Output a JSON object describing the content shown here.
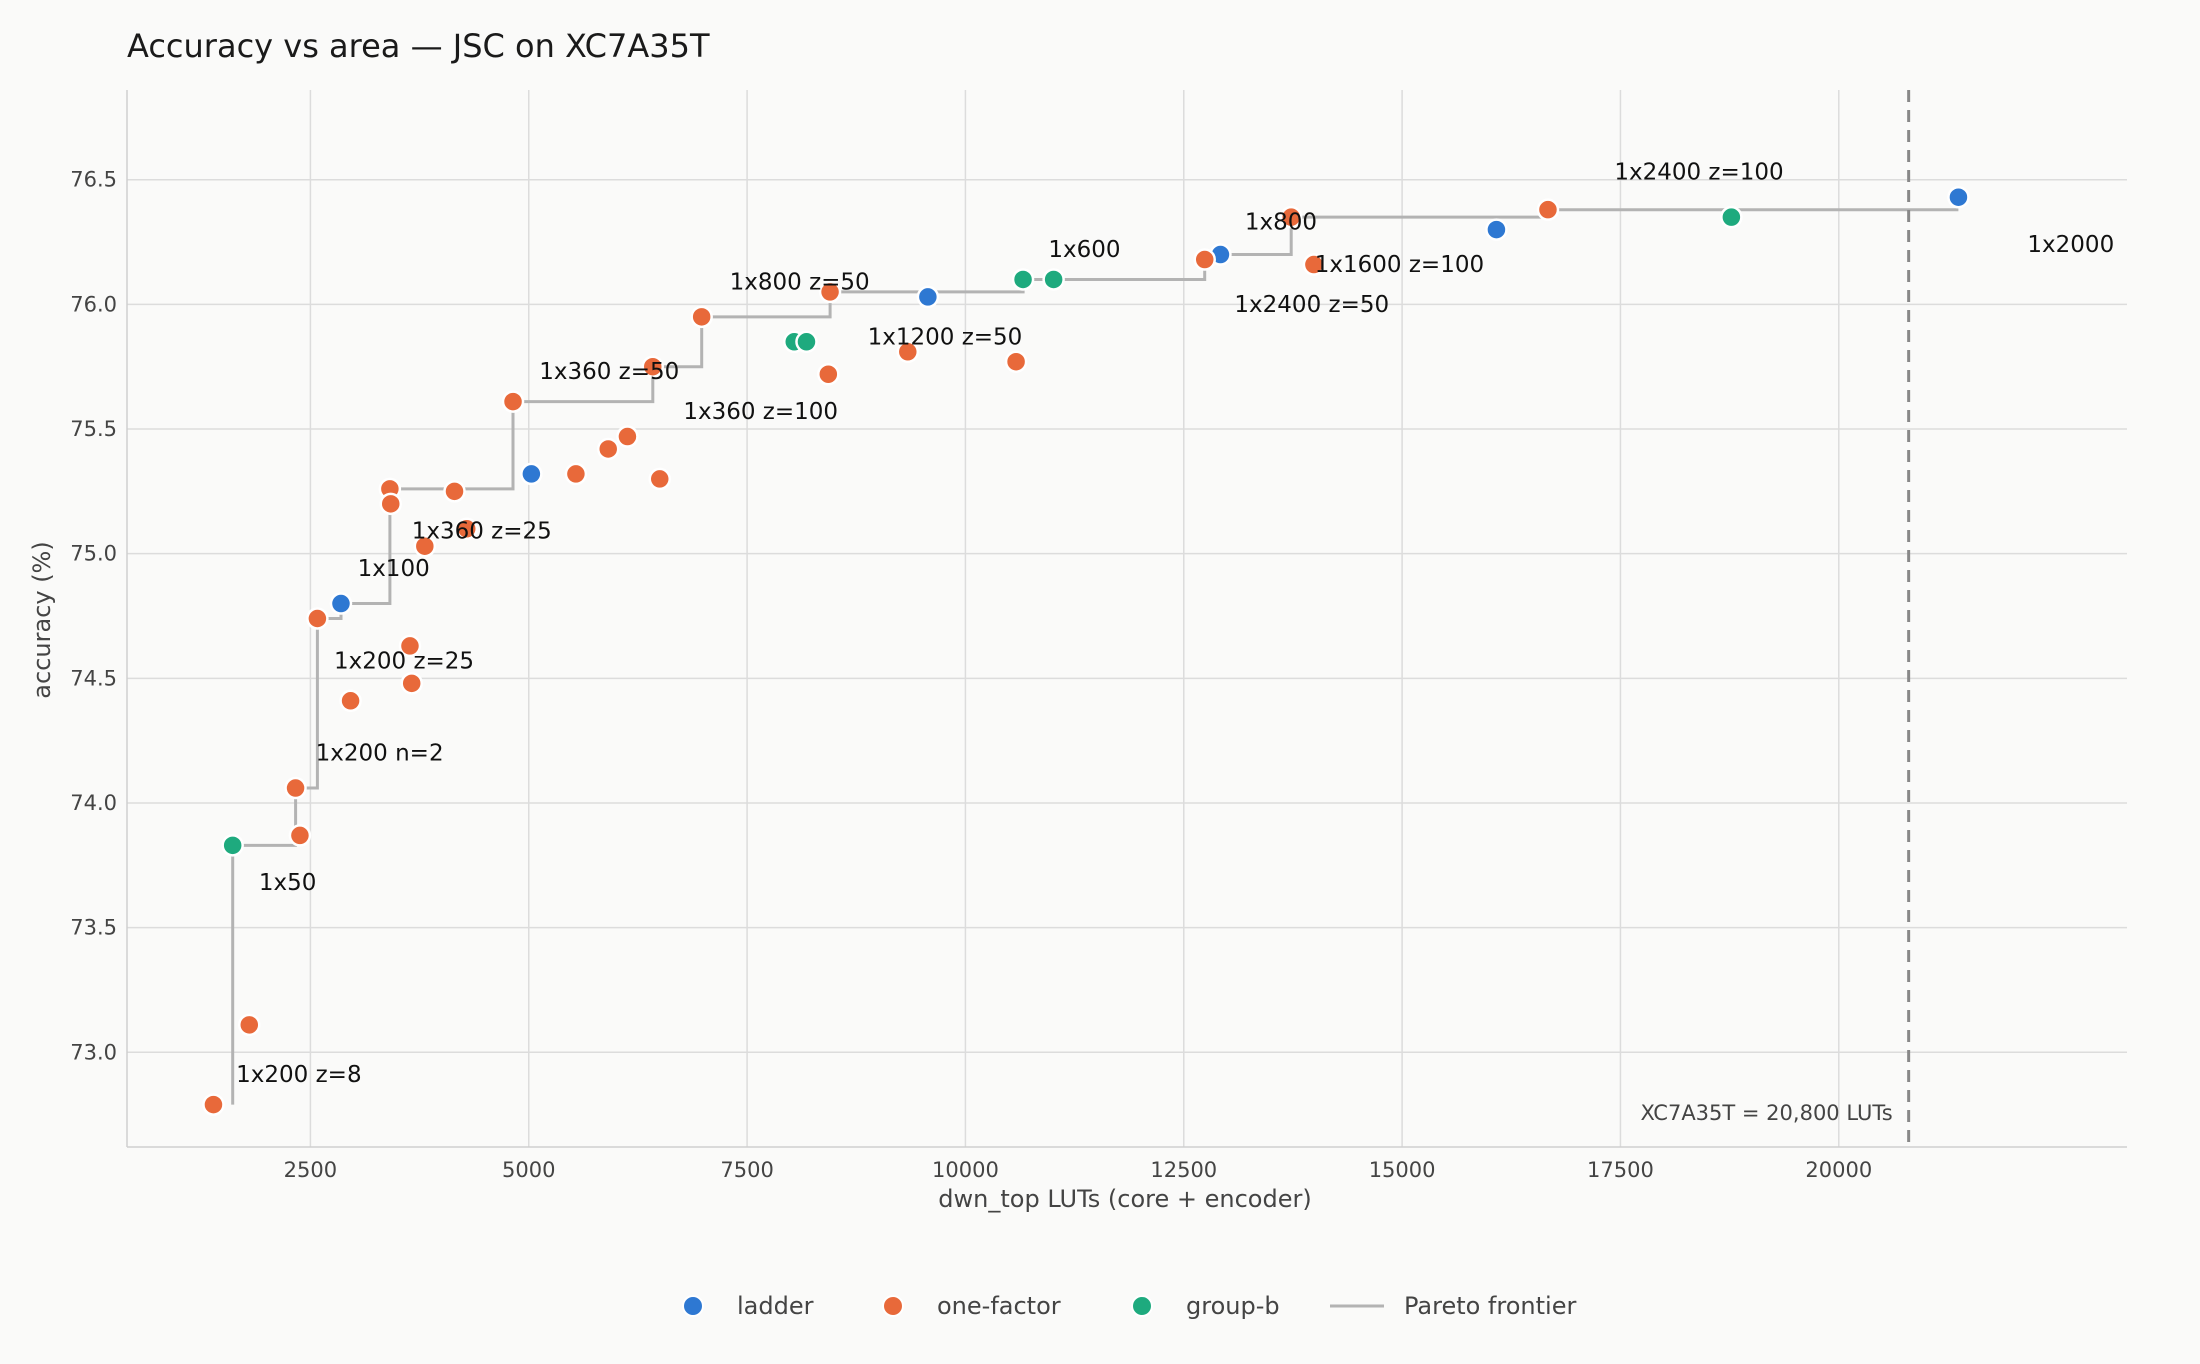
{
  "chart_data": {
    "type": "scatter",
    "title": "Accuracy vs area — JSC on XC7A35T",
    "xlabel": "dwn_top LUTs (core + encoder)",
    "ylabel": "accuracy (%)",
    "xlim": [
      400,
      23300
    ],
    "ylim": [
      72.62,
      76.86
    ],
    "xticks": [
      2500,
      5000,
      7500,
      10000,
      12500,
      15000,
      17500,
      20000
    ],
    "yticks": [
      73.0,
      73.5,
      74.0,
      74.5,
      75.0,
      75.5,
      76.0,
      76.5
    ],
    "grid": true,
    "legend_position": "bottom-center",
    "colors": {
      "ladder": "#2e78d2",
      "one-factor": "#e8693a",
      "group-b": "#1eaa7e",
      "frontier": "#b3b3b3",
      "reference": "#888888"
    },
    "series": [
      {
        "name": "ladder",
        "color": "#2e78d2",
        "points": [
          {
            "x": 2850,
            "y": 74.8
          },
          {
            "x": 5030,
            "y": 75.32
          },
          {
            "x": 9570,
            "y": 76.03
          },
          {
            "x": 12920,
            "y": 76.2
          },
          {
            "x": 16080,
            "y": 76.3
          },
          {
            "x": 21370,
            "y": 76.43
          }
        ]
      },
      {
        "name": "one-factor",
        "color": "#e8693a",
        "points": [
          {
            "x": 1390,
            "y": 72.79
          },
          {
            "x": 1800,
            "y": 73.11
          },
          {
            "x": 2330,
            "y": 74.06
          },
          {
            "x": 2380,
            "y": 73.87
          },
          {
            "x": 2580,
            "y": 74.74
          },
          {
            "x": 2960,
            "y": 74.41
          },
          {
            "x": 3410,
            "y": 75.26
          },
          {
            "x": 3420,
            "y": 75.2
          },
          {
            "x": 3640,
            "y": 74.63
          },
          {
            "x": 3660,
            "y": 74.48
          },
          {
            "x": 3810,
            "y": 75.03
          },
          {
            "x": 4150,
            "y": 75.25
          },
          {
            "x": 4290,
            "y": 75.1
          },
          {
            "x": 4820,
            "y": 75.61
          },
          {
            "x": 5540,
            "y": 75.32
          },
          {
            "x": 5910,
            "y": 75.42
          },
          {
            "x": 6130,
            "y": 75.47
          },
          {
            "x": 6420,
            "y": 75.75
          },
          {
            "x": 6500,
            "y": 75.3
          },
          {
            "x": 6980,
            "y": 75.95
          },
          {
            "x": 8430,
            "y": 75.72
          },
          {
            "x": 8450,
            "y": 76.05
          },
          {
            "x": 9340,
            "y": 75.81
          },
          {
            "x": 10580,
            "y": 75.77
          },
          {
            "x": 12740,
            "y": 76.18
          },
          {
            "x": 13730,
            "y": 76.35
          },
          {
            "x": 13990,
            "y": 76.16
          },
          {
            "x": 16670,
            "y": 76.38
          }
        ]
      },
      {
        "name": "group-b",
        "color": "#1eaa7e",
        "points": [
          {
            "x": 1610,
            "y": 73.83
          },
          {
            "x": 8040,
            "y": 75.85
          },
          {
            "x": 8180,
            "y": 75.85
          },
          {
            "x": 10660,
            "y": 76.1
          },
          {
            "x": 11010,
            "y": 76.1
          },
          {
            "x": 18770,
            "y": 76.35
          }
        ]
      }
    ],
    "frontier": {
      "name": "Pareto frontier",
      "color": "#b3b3b3",
      "steps": [
        {
          "x": 1610,
          "y": 72.79
        },
        {
          "x": 1610,
          "y": 73.83
        },
        {
          "x": 2330,
          "y": 73.83
        },
        {
          "x": 2330,
          "y": 74.06
        },
        {
          "x": 2580,
          "y": 74.06
        },
        {
          "x": 2580,
          "y": 74.74
        },
        {
          "x": 2850,
          "y": 74.74
        },
        {
          "x": 2850,
          "y": 74.8
        },
        {
          "x": 3410,
          "y": 74.8
        },
        {
          "x": 3410,
          "y": 75.26
        },
        {
          "x": 4820,
          "y": 75.26
        },
        {
          "x": 4820,
          "y": 75.61
        },
        {
          "x": 6420,
          "y": 75.61
        },
        {
          "x": 6420,
          "y": 75.75
        },
        {
          "x": 6980,
          "y": 75.75
        },
        {
          "x": 6980,
          "y": 75.95
        },
        {
          "x": 8450,
          "y": 75.95
        },
        {
          "x": 8450,
          "y": 76.05
        },
        {
          "x": 10660,
          "y": 76.05
        },
        {
          "x": 10660,
          "y": 76.1
        },
        {
          "x": 12740,
          "y": 76.1
        },
        {
          "x": 12740,
          "y": 76.18
        },
        {
          "x": 12920,
          "y": 76.18
        },
        {
          "x": 12920,
          "y": 76.2
        },
        {
          "x": 13730,
          "y": 76.2
        },
        {
          "x": 13730,
          "y": 76.35
        },
        {
          "x": 16670,
          "y": 76.35
        },
        {
          "x": 16670,
          "y": 76.38
        },
        {
          "x": 21370,
          "y": 76.38
        }
      ]
    },
    "reference_line": {
      "x": 20800,
      "label": "XC7A35T = 20,800 LUTs"
    },
    "annotations": [
      {
        "text": "1x200 z=8",
        "x": 1650,
        "y": 72.88
      },
      {
        "text": "1x50",
        "x": 1910,
        "y": 73.65
      },
      {
        "text": "1x200 n=2",
        "x": 2560,
        "y": 74.17
      },
      {
        "text": "1x200 z=25",
        "x": 2770,
        "y": 74.54
      },
      {
        "text": "1x100",
        "x": 3040,
        "y": 74.91
      },
      {
        "text": "1x360 z=25",
        "x": 3660,
        "y": 75.06
      },
      {
        "text": "1x360 z=50",
        "x": 5120,
        "y": 75.7
      },
      {
        "text": "1x360 z=100",
        "x": 6770,
        "y": 75.54
      },
      {
        "text": "1x800 z=50",
        "x": 7300,
        "y": 76.06
      },
      {
        "text": "1x1200 z=50",
        "x": 8880,
        "y": 75.84
      },
      {
        "text": "1x600",
        "x": 10950,
        "y": 76.19
      },
      {
        "text": "1x800",
        "x": 13200,
        "y": 76.3
      },
      {
        "text": "1x1600 z=100",
        "x": 14000,
        "y": 76.13
      },
      {
        "text": "1x2400 z=50",
        "x": 13080,
        "y": 75.97
      },
      {
        "text": "1x2400 z=100",
        "x": 17430,
        "y": 76.5
      },
      {
        "text": "1x2000",
        "x": 22160,
        "y": 76.21
      }
    ]
  }
}
